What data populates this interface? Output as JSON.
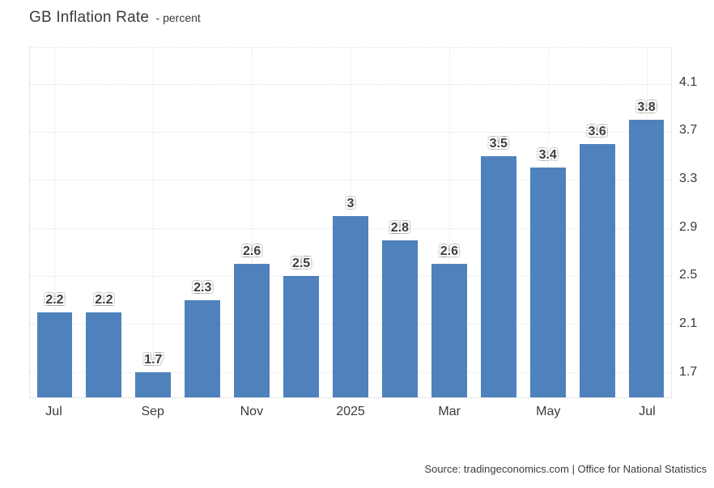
{
  "header": {
    "title": "GB Inflation Rate",
    "subtitle": "- percent"
  },
  "footer": {
    "source": "Source: tradingeconomics.com | Office for National Statistics"
  },
  "chart_data": {
    "type": "bar",
    "title": "GB Inflation Rate",
    "unit": "percent",
    "values": [
      2.2,
      2.2,
      1.7,
      2.3,
      2.6,
      2.5,
      3,
      2.8,
      2.6,
      3.5,
      3.4,
      3.6,
      3.8
    ],
    "bar_labels": [
      "2.2",
      "2.2",
      "1.7",
      "2.3",
      "2.6",
      "2.5",
      "3",
      "2.8",
      "2.6",
      "3.5",
      "3.4",
      "3.6",
      "3.8"
    ],
    "x_ticks": [
      {
        "index": 0,
        "label": "Jul"
      },
      {
        "index": 2,
        "label": "Sep"
      },
      {
        "index": 4,
        "label": "Nov"
      },
      {
        "index": 6,
        "label": "2025"
      },
      {
        "index": 8,
        "label": "Mar"
      },
      {
        "index": 10,
        "label": "May"
      },
      {
        "index": 12,
        "label": "Jul"
      }
    ],
    "y_ticks": [
      4.1,
      3.7,
      3.3,
      2.9,
      2.5,
      2.1,
      1.7
    ],
    "ylim": [
      1.49,
      4.4
    ],
    "y_axis_side": "right",
    "bar_color": "#4f81bd",
    "grid": true,
    "legend": false,
    "source": "Source: tradingeconomics.com | Office for National Statistics"
  }
}
